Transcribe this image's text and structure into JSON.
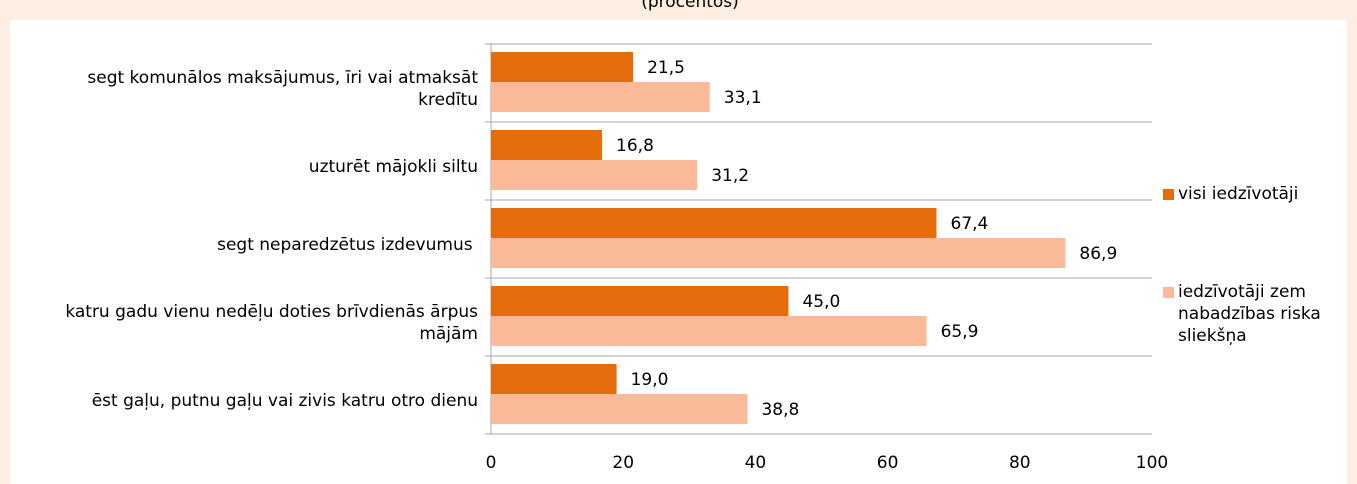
{
  "chart_data": {
    "type": "hbar",
    "subtitle": "(procentos)",
    "categories": [
      "segt komunālos maksājumus, īri vai atmaksāt kredītu",
      "uzturēt mājokli siltu",
      "segt neparedzētus izdevumus ",
      "katru gadu vienu nedēļu doties brīvdienās ārpus mājām",
      "ēst gaļu, putnu gaļu vai zivis katru otro dienu"
    ],
    "series": [
      {
        "name": "visi iedzīvotāji",
        "color": "#e46c0a",
        "values": [
          21.5,
          16.8,
          67.4,
          45.0,
          19.0
        ],
        "value_labels": [
          "21,5",
          "16,8",
          "67,4",
          "45,0",
          "19,0"
        ]
      },
      {
        "name": "iedzīvotāji zem nabadzības riska sliekšņa",
        "color": "#fab998",
        "values": [
          33.1,
          31.2,
          86.9,
          65.9,
          38.8
        ],
        "value_labels": [
          "33,1",
          "31,2",
          "86,9",
          "65,9",
          "38,8"
        ]
      }
    ],
    "xlim": [
      0,
      100
    ],
    "xticks": [
      0,
      20,
      40,
      60,
      80,
      100
    ],
    "legend": "right"
  }
}
